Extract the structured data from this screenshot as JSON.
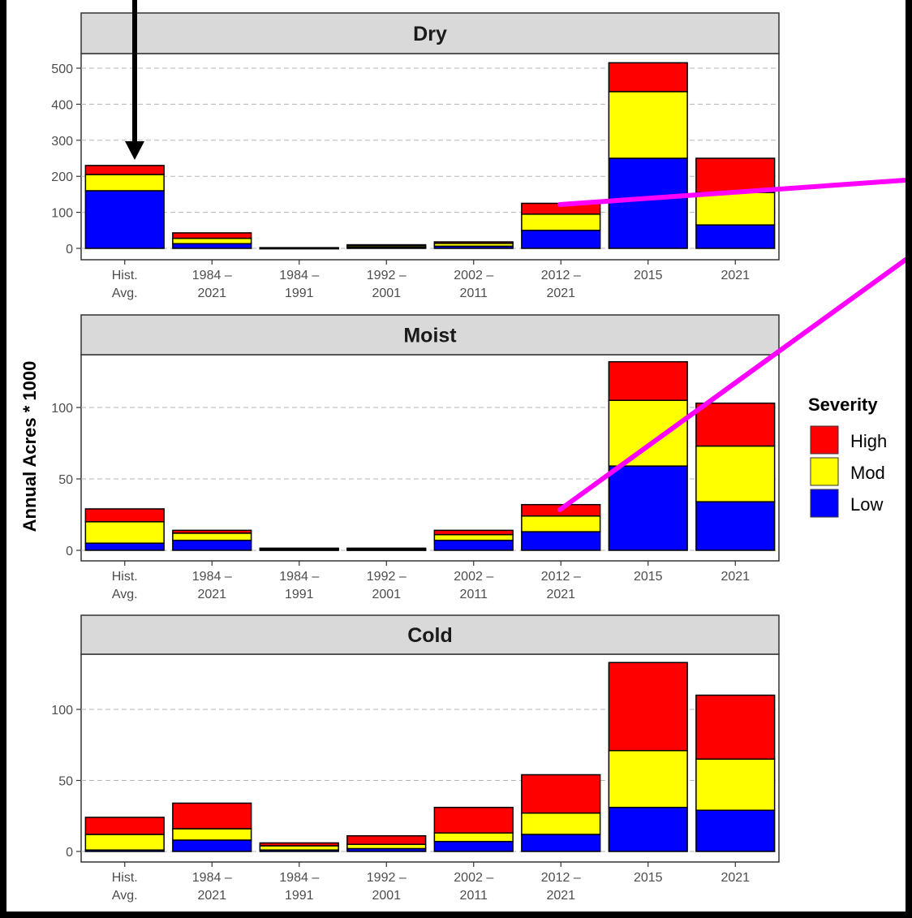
{
  "chart_data": {
    "type": "bar",
    "stacked": true,
    "ylabel": "Annual Acres * 1000",
    "categories": [
      [
        "Hist.",
        "Avg."
      ],
      [
        "1984 –",
        "2021"
      ],
      [
        "1984 –",
        "1991"
      ],
      [
        "1992 –",
        "2001"
      ],
      [
        "2002 –",
        "2011"
      ],
      [
        "2012 –",
        "2021"
      ],
      [
        "2015"
      ],
      [
        "2021"
      ]
    ],
    "legend": {
      "title": "Severity",
      "placement": "right",
      "items": [
        {
          "label": "High",
          "color": "#ff0000"
        },
        {
          "label": "Mod",
          "color": "#ffff00"
        },
        {
          "label": "Low",
          "color": "#0000ff"
        }
      ]
    },
    "series_order": [
      "Low",
      "Mod",
      "High"
    ],
    "colors": {
      "Low": "#0000ff",
      "Mod": "#ffff00",
      "High": "#ff0000"
    },
    "panels": [
      {
        "title": "Dry",
        "ylim": [
          0,
          520
        ],
        "yticks": [
          0,
          100,
          200,
          300,
          400,
          500
        ],
        "series": [
          {
            "name": "Low",
            "values": [
              160,
              13,
              1,
              3,
              6,
              50,
              250,
              65
            ]
          },
          {
            "name": "Mod",
            "values": [
              45,
              15,
              0.5,
              4,
              8,
              45,
              185,
              90
            ]
          },
          {
            "name": "High",
            "values": [
              25,
              15,
              0.5,
              3,
              4,
              30,
              80,
              95
            ]
          }
        ]
      },
      {
        "title": "Moist",
        "ylim": [
          0,
          135
        ],
        "yticks": [
          0,
          50,
          100
        ],
        "series": [
          {
            "name": "Low",
            "values": [
              5,
              7,
              0.5,
              0.5,
              7,
              13,
              59,
              34
            ]
          },
          {
            "name": "Mod",
            "values": [
              15,
              5,
              0.5,
              0.5,
              4,
              11,
              46,
              39
            ]
          },
          {
            "name": "High",
            "values": [
              9,
              2,
              0.5,
              0.5,
              3,
              8,
              27,
              30
            ]
          }
        ]
      },
      {
        "title": "Cold",
        "ylim": [
          0,
          135
        ],
        "yticks": [
          0,
          50,
          100
        ],
        "series": [
          {
            "name": "Low",
            "values": [
              1,
              8,
              1,
              2,
              7,
              12,
              31,
              29
            ]
          },
          {
            "name": "Mod",
            "values": [
              11,
              8,
              3,
              3,
              6,
              15,
              40,
              36
            ]
          },
          {
            "name": "High",
            "values": [
              12,
              18,
              2,
              6,
              18,
              27,
              62,
              45
            ]
          }
        ]
      }
    ]
  },
  "annotations": {
    "arrow_color": "#000000",
    "connector_color": "#ff00ff"
  }
}
